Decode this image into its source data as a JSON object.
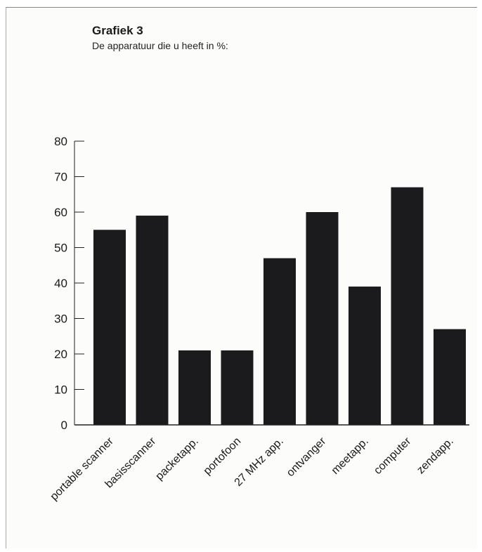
{
  "header": {
    "title": "Grafiek 3",
    "subtitle": "De apparatuur die u heeft in %:"
  },
  "colors": {
    "bar": "#1b1b1e",
    "axis": "#222222",
    "text": "#1a1a1a"
  },
  "chart_data": {
    "type": "bar",
    "title": "Grafiek 3",
    "subtitle": "De apparatuur die u heeft in %:",
    "xlabel": "",
    "ylabel": "",
    "categories": [
      "portable scanner",
      "basisscanner",
      "packetapp.",
      "portofoon",
      "27 MHz app.",
      "ontvanger",
      "meetapp.",
      "computer",
      "zendapp."
    ],
    "values": [
      55,
      59,
      21,
      21,
      47,
      60,
      39,
      67,
      27
    ],
    "ylim": [
      0,
      80
    ],
    "yticks": [
      0,
      10,
      20,
      30,
      40,
      50,
      60,
      70,
      80
    ],
    "grid": false,
    "legend": "none"
  }
}
